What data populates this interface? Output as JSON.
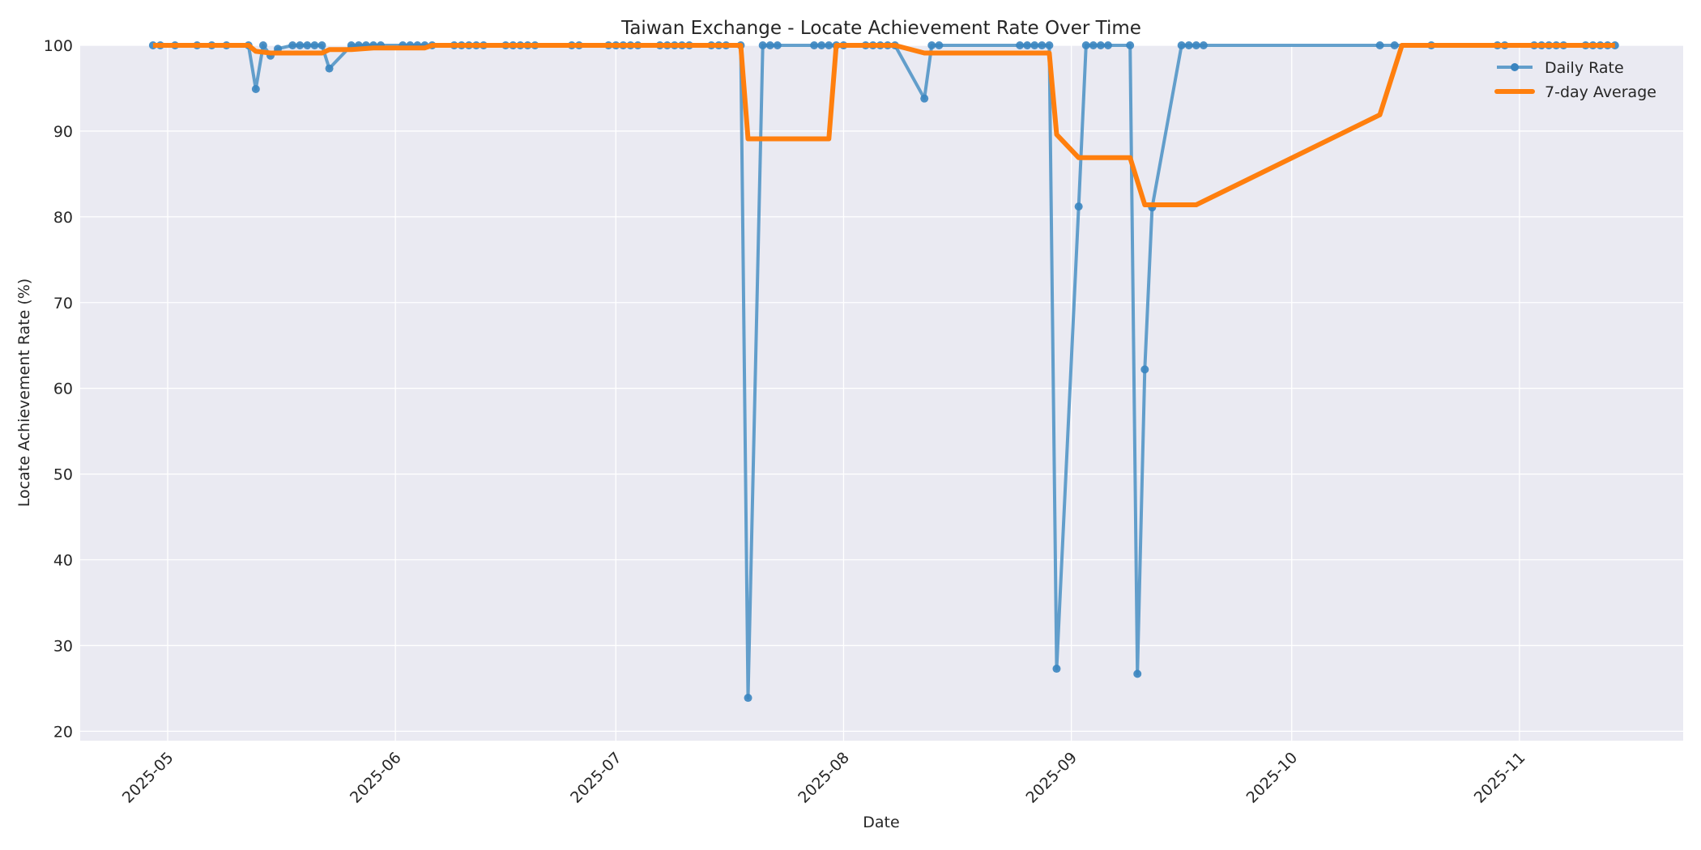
{
  "chart_data": {
    "type": "line",
    "title": "Taiwan Exchange - Locate Achievement Rate Over Time",
    "xlabel": "Date",
    "ylabel": "Locate Achievement Rate (%)",
    "ylim": [
      18.9,
      100
    ],
    "xlim": [
      "2025-04-21",
      "2025-11-24"
    ],
    "grid": true,
    "legend_position": "upper right",
    "x_ticks": [
      "2025-05",
      "2025-06",
      "2025-07",
      "2025-08",
      "2025-09",
      "2025-10",
      "2025-11"
    ],
    "y_ticks": [
      20,
      30,
      40,
      50,
      60,
      70,
      80,
      90,
      100
    ],
    "colors": {
      "daily": "#4a90c4",
      "avg": "#ff7f0e",
      "plot_bg": "#eaeaf2",
      "grid": "#ffffff"
    },
    "series": [
      {
        "name": "Daily Rate",
        "style": "line+markers",
        "points": [
          [
            "2025-04-29",
            100
          ],
          [
            "2025-04-30",
            100
          ],
          [
            "2025-05-02",
            100
          ],
          [
            "2025-05-05",
            100
          ],
          [
            "2025-05-07",
            100
          ],
          [
            "2025-05-09",
            100
          ],
          [
            "2025-05-12",
            100
          ],
          [
            "2025-05-13",
            94.9
          ],
          [
            "2025-05-14",
            100
          ],
          [
            "2025-05-15",
            98.8
          ],
          [
            "2025-05-16",
            99.6
          ],
          [
            "2025-05-18",
            100
          ],
          [
            "2025-05-19",
            100
          ],
          [
            "2025-05-20",
            100
          ],
          [
            "2025-05-21",
            100
          ],
          [
            "2025-05-22",
            100
          ],
          [
            "2025-05-23",
            97.3
          ],
          [
            "2025-05-26",
            100
          ],
          [
            "2025-05-27",
            100
          ],
          [
            "2025-05-28",
            100
          ],
          [
            "2025-05-29",
            100
          ],
          [
            "2025-05-30",
            100
          ],
          [
            "2025-06-02",
            100
          ],
          [
            "2025-06-03",
            100
          ],
          [
            "2025-06-04",
            100
          ],
          [
            "2025-06-05",
            100
          ],
          [
            "2025-06-06",
            100
          ],
          [
            "2025-06-09",
            100
          ],
          [
            "2025-06-10",
            100
          ],
          [
            "2025-06-11",
            100
          ],
          [
            "2025-06-12",
            100
          ],
          [
            "2025-06-13",
            100
          ],
          [
            "2025-06-16",
            100
          ],
          [
            "2025-06-17",
            100
          ],
          [
            "2025-06-18",
            100
          ],
          [
            "2025-06-19",
            100
          ],
          [
            "2025-06-20",
            100
          ],
          [
            "2025-06-25",
            100
          ],
          [
            "2025-06-26",
            100
          ],
          [
            "2025-06-30",
            100
          ],
          [
            "2025-07-01",
            100
          ],
          [
            "2025-07-02",
            100
          ],
          [
            "2025-07-03",
            100
          ],
          [
            "2025-07-04",
            100
          ],
          [
            "2025-07-07",
            100
          ],
          [
            "2025-07-08",
            100
          ],
          [
            "2025-07-09",
            100
          ],
          [
            "2025-07-10",
            100
          ],
          [
            "2025-07-11",
            100
          ],
          [
            "2025-07-14",
            100
          ],
          [
            "2025-07-15",
            100
          ],
          [
            "2025-07-16",
            100
          ],
          [
            "2025-07-18",
            100
          ],
          [
            "2025-07-19",
            23.9
          ],
          [
            "2025-07-21",
            100
          ],
          [
            "2025-07-22",
            100
          ],
          [
            "2025-07-23",
            100
          ],
          [
            "2025-07-28",
            100
          ],
          [
            "2025-07-29",
            100
          ],
          [
            "2025-07-30",
            100
          ],
          [
            "2025-07-31",
            100
          ],
          [
            "2025-08-01",
            100
          ],
          [
            "2025-08-04",
            100
          ],
          [
            "2025-08-05",
            100
          ],
          [
            "2025-08-06",
            100
          ],
          [
            "2025-08-07",
            100
          ],
          [
            "2025-08-08",
            100
          ],
          [
            "2025-08-12",
            93.8
          ],
          [
            "2025-08-13",
            100
          ],
          [
            "2025-08-14",
            100
          ],
          [
            "2025-08-25",
            100
          ],
          [
            "2025-08-26",
            100
          ],
          [
            "2025-08-27",
            100
          ],
          [
            "2025-08-28",
            100
          ],
          [
            "2025-08-29",
            100
          ],
          [
            "2025-08-30",
            27.3
          ],
          [
            "2025-09-02",
            81.2
          ],
          [
            "2025-09-03",
            100
          ],
          [
            "2025-09-04",
            100
          ],
          [
            "2025-09-05",
            100
          ],
          [
            "2025-09-06",
            100
          ],
          [
            "2025-09-09",
            100
          ],
          [
            "2025-09-10",
            26.7
          ],
          [
            "2025-09-11",
            62.2
          ],
          [
            "2025-09-12",
            81.1
          ],
          [
            "2025-09-16",
            100
          ],
          [
            "2025-09-17",
            100
          ],
          [
            "2025-09-18",
            100
          ],
          [
            "2025-09-19",
            100
          ],
          [
            "2025-10-13",
            100
          ],
          [
            "2025-10-15",
            100
          ],
          [
            "2025-10-20",
            100
          ],
          [
            "2025-10-29",
            100
          ],
          [
            "2025-10-30",
            100
          ],
          [
            "2025-11-03",
            100
          ],
          [
            "2025-11-04",
            100
          ],
          [
            "2025-11-05",
            100
          ],
          [
            "2025-11-06",
            100
          ],
          [
            "2025-11-07",
            100
          ],
          [
            "2025-11-10",
            100
          ],
          [
            "2025-11-11",
            100
          ],
          [
            "2025-11-12",
            100
          ],
          [
            "2025-11-13",
            100
          ],
          [
            "2025-11-14",
            100
          ]
        ]
      },
      {
        "name": "7-day Average",
        "style": "line",
        "points": [
          [
            "2025-04-29",
            100
          ],
          [
            "2025-05-12",
            100
          ],
          [
            "2025-05-13",
            99.3
          ],
          [
            "2025-05-15",
            99.1
          ],
          [
            "2025-05-22",
            99.1
          ],
          [
            "2025-05-23",
            99.5
          ],
          [
            "2025-05-26",
            99.5
          ],
          [
            "2025-05-29",
            99.7
          ],
          [
            "2025-06-05",
            99.7
          ],
          [
            "2025-06-06",
            100
          ],
          [
            "2025-07-18",
            100
          ],
          [
            "2025-07-19",
            89.1
          ],
          [
            "2025-07-30",
            89.1
          ],
          [
            "2025-07-31",
            100
          ],
          [
            "2025-08-08",
            100
          ],
          [
            "2025-08-12",
            99.1
          ],
          [
            "2025-08-29",
            99.1
          ],
          [
            "2025-08-30",
            89.6
          ],
          [
            "2025-09-02",
            86.9
          ],
          [
            "2025-09-09",
            86.9
          ],
          [
            "2025-09-11",
            81.4
          ],
          [
            "2025-09-18",
            81.4
          ],
          [
            "2025-10-13",
            91.9
          ],
          [
            "2025-10-16",
            100
          ],
          [
            "2025-11-14",
            100
          ]
        ]
      }
    ]
  }
}
